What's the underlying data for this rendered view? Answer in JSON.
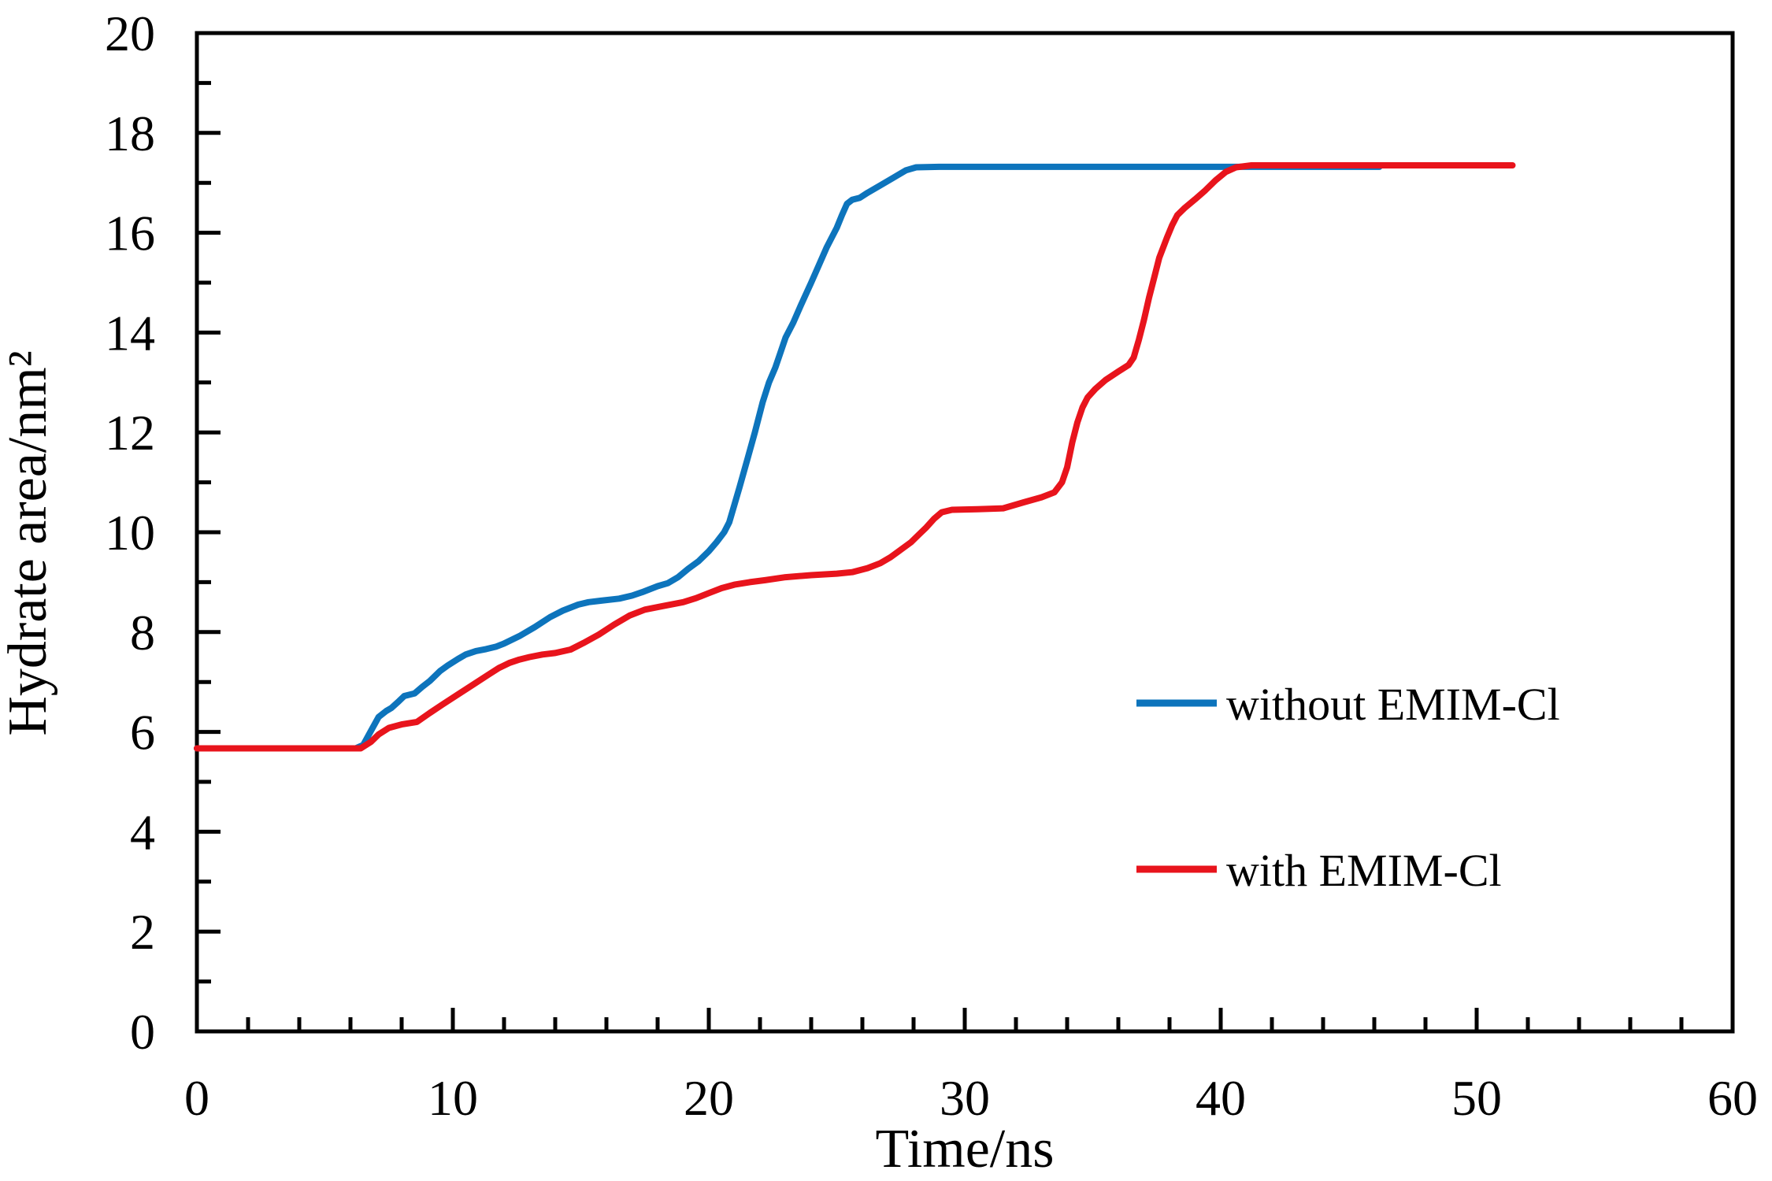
{
  "chart_data": {
    "type": "line",
    "title": "",
    "xlabel": "Time/ns",
    "ylabel": "Hydrate area/nm²",
    "xlim": [
      0,
      60
    ],
    "ylim": [
      0,
      20
    ],
    "x_major_ticks": [
      0,
      10,
      20,
      30,
      40,
      50,
      60
    ],
    "x_minor_step": 2,
    "y_major_ticks": [
      0,
      2,
      4,
      6,
      8,
      10,
      12,
      14,
      16,
      18,
      20
    ],
    "y_minor_step": 1,
    "grid": "off",
    "frame": "box",
    "axis_color": "#000000",
    "legend_position": "right-middle-inside",
    "series": [
      {
        "name": "without EMIM-Cl",
        "color": "#0d74bc",
        "points": [
          [
            0,
            5.67
          ],
          [
            1,
            5.67
          ],
          [
            2,
            5.67
          ],
          [
            3,
            5.67
          ],
          [
            4,
            5.67
          ],
          [
            5,
            5.67
          ],
          [
            6.2,
            5.67
          ],
          [
            6.5,
            5.74
          ],
          [
            6.8,
            6.02
          ],
          [
            7.1,
            6.3
          ],
          [
            7.4,
            6.42
          ],
          [
            7.6,
            6.48
          ],
          [
            7.9,
            6.62
          ],
          [
            8.1,
            6.72
          ],
          [
            8.5,
            6.77
          ],
          [
            8.8,
            6.9
          ],
          [
            9.1,
            7.02
          ],
          [
            9.5,
            7.22
          ],
          [
            9.8,
            7.33
          ],
          [
            10.2,
            7.46
          ],
          [
            10.5,
            7.55
          ],
          [
            10.9,
            7.62
          ],
          [
            11.3,
            7.66
          ],
          [
            11.7,
            7.71
          ],
          [
            12.0,
            7.77
          ],
          [
            12.6,
            7.92
          ],
          [
            13.2,
            8.1
          ],
          [
            13.8,
            8.3
          ],
          [
            14.3,
            8.43
          ],
          [
            14.9,
            8.55
          ],
          [
            15.3,
            8.6
          ],
          [
            15.8,
            8.63
          ],
          [
            16.5,
            8.67
          ],
          [
            17.0,
            8.73
          ],
          [
            17.4,
            8.8
          ],
          [
            18.0,
            8.92
          ],
          [
            18.4,
            8.98
          ],
          [
            18.8,
            9.1
          ],
          [
            19.2,
            9.27
          ],
          [
            19.6,
            9.42
          ],
          [
            20.0,
            9.62
          ],
          [
            20.3,
            9.8
          ],
          [
            20.6,
            10.0
          ],
          [
            20.8,
            10.2
          ],
          [
            21.0,
            10.55
          ],
          [
            21.2,
            10.9
          ],
          [
            21.5,
            11.45
          ],
          [
            21.8,
            12.0
          ],
          [
            22.1,
            12.6
          ],
          [
            22.35,
            13.0
          ],
          [
            22.6,
            13.3
          ],
          [
            22.8,
            13.6
          ],
          [
            23.0,
            13.9
          ],
          [
            23.3,
            14.2
          ],
          [
            23.6,
            14.55
          ],
          [
            24.0,
            15.0
          ],
          [
            24.3,
            15.35
          ],
          [
            24.6,
            15.7
          ],
          [
            25.0,
            16.1
          ],
          [
            25.2,
            16.35
          ],
          [
            25.4,
            16.58
          ],
          [
            25.6,
            16.66
          ],
          [
            25.9,
            16.7
          ],
          [
            26.2,
            16.8
          ],
          [
            26.7,
            16.95
          ],
          [
            27.2,
            17.1
          ],
          [
            27.7,
            17.25
          ],
          [
            28.1,
            17.31
          ],
          [
            29.0,
            17.32
          ],
          [
            46.2,
            17.32
          ]
        ]
      },
      {
        "name": "with EMIM-Cl",
        "color": "#e8141c",
        "points": [
          [
            0,
            5.67
          ],
          [
            1,
            5.67
          ],
          [
            2,
            5.67
          ],
          [
            3,
            5.67
          ],
          [
            4,
            5.67
          ],
          [
            5,
            5.67
          ],
          [
            6.4,
            5.67
          ],
          [
            6.8,
            5.8
          ],
          [
            7.1,
            5.95
          ],
          [
            7.5,
            6.08
          ],
          [
            8.0,
            6.15
          ],
          [
            8.6,
            6.2
          ],
          [
            9.1,
            6.38
          ],
          [
            9.6,
            6.55
          ],
          [
            10.2,
            6.75
          ],
          [
            10.8,
            6.95
          ],
          [
            11.4,
            7.15
          ],
          [
            11.8,
            7.28
          ],
          [
            12.2,
            7.38
          ],
          [
            12.6,
            7.45
          ],
          [
            13.0,
            7.5
          ],
          [
            13.5,
            7.55
          ],
          [
            14.0,
            7.58
          ],
          [
            14.6,
            7.65
          ],
          [
            15.1,
            7.78
          ],
          [
            15.7,
            7.95
          ],
          [
            16.3,
            8.15
          ],
          [
            16.9,
            8.33
          ],
          [
            17.5,
            8.45
          ],
          [
            18.2,
            8.52
          ],
          [
            19.0,
            8.6
          ],
          [
            19.5,
            8.68
          ],
          [
            20.0,
            8.78
          ],
          [
            20.5,
            8.88
          ],
          [
            21.0,
            8.95
          ],
          [
            21.6,
            9.0
          ],
          [
            22.2,
            9.04
          ],
          [
            23.0,
            9.1
          ],
          [
            24.0,
            9.14
          ],
          [
            25.0,
            9.17
          ],
          [
            25.6,
            9.2
          ],
          [
            26.2,
            9.28
          ],
          [
            26.7,
            9.38
          ],
          [
            27.1,
            9.5
          ],
          [
            27.5,
            9.65
          ],
          [
            27.9,
            9.8
          ],
          [
            28.2,
            9.95
          ],
          [
            28.5,
            10.1
          ],
          [
            28.8,
            10.27
          ],
          [
            29.1,
            10.4
          ],
          [
            29.5,
            10.45
          ],
          [
            30.5,
            10.46
          ],
          [
            31.5,
            10.48
          ],
          [
            32.3,
            10.6
          ],
          [
            33.0,
            10.7
          ],
          [
            33.5,
            10.8
          ],
          [
            33.8,
            11.0
          ],
          [
            34.0,
            11.3
          ],
          [
            34.2,
            11.8
          ],
          [
            34.4,
            12.2
          ],
          [
            34.6,
            12.5
          ],
          [
            34.8,
            12.7
          ],
          [
            35.1,
            12.87
          ],
          [
            35.5,
            13.05
          ],
          [
            36.0,
            13.22
          ],
          [
            36.4,
            13.35
          ],
          [
            36.6,
            13.5
          ],
          [
            36.8,
            13.85
          ],
          [
            37.0,
            14.25
          ],
          [
            37.2,
            14.7
          ],
          [
            37.4,
            15.1
          ],
          [
            37.6,
            15.5
          ],
          [
            37.9,
            15.9
          ],
          [
            38.1,
            16.15
          ],
          [
            38.3,
            16.35
          ],
          [
            38.6,
            16.5
          ],
          [
            39.0,
            16.67
          ],
          [
            39.4,
            16.85
          ],
          [
            39.8,
            17.05
          ],
          [
            40.2,
            17.22
          ],
          [
            40.6,
            17.31
          ],
          [
            41.2,
            17.35
          ],
          [
            51.4,
            17.35
          ]
        ]
      }
    ],
    "legend": [
      {
        "label": "without EMIM-Cl",
        "color": "#0d74bc"
      },
      {
        "label": "with EMIM-Cl",
        "color": "#e8141c"
      }
    ]
  }
}
